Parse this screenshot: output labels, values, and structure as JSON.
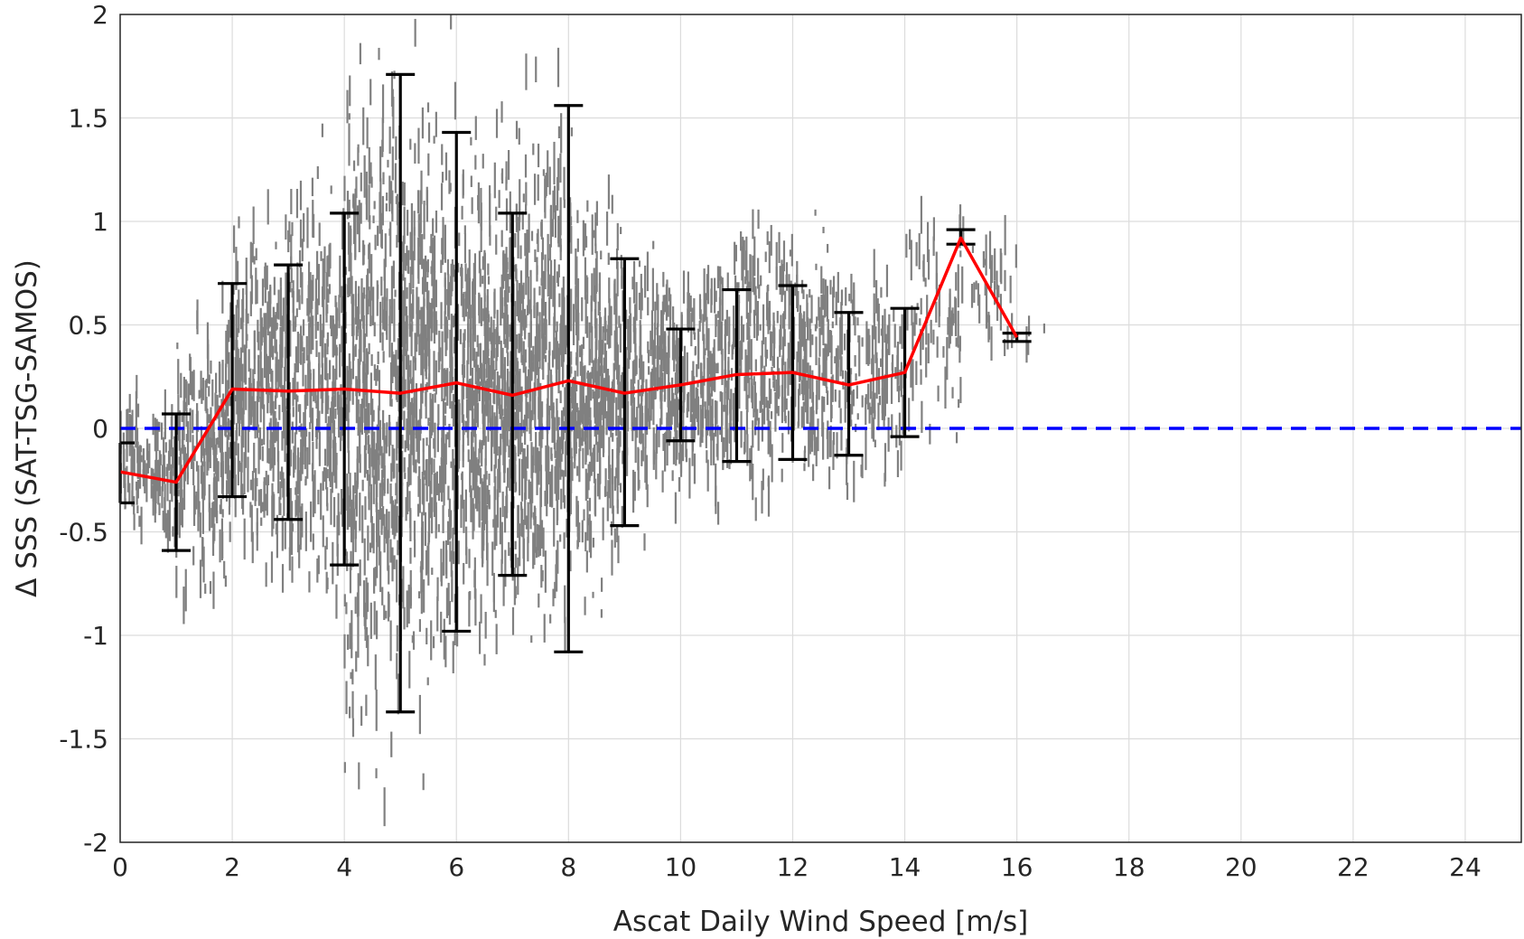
{
  "chart_data": {
    "type": "scatter",
    "title": "",
    "xlabel": "Ascat Daily Wind Speed [m/s]",
    "ylabel": "Δ SSS (SAT-TSG-SAMOS)",
    "xlim": [
      0,
      25
    ],
    "ylim": [
      -2,
      2
    ],
    "xticks": [
      0,
      2,
      4,
      6,
      8,
      10,
      12,
      14,
      16,
      18,
      20,
      22,
      24
    ],
    "xtick_labels": [
      "0",
      "2",
      "4",
      "6",
      "8",
      "10",
      "12",
      "14",
      "16",
      "18",
      "20",
      "22",
      "24"
    ],
    "yticks": [
      -2,
      -1.5,
      -1,
      -0.5,
      0,
      0.5,
      1,
      1.5,
      2
    ],
    "ytick_labels": [
      "-2",
      "-1.5",
      "-1",
      "-0.5",
      "0",
      "0.5",
      "1",
      "1.5",
      "2"
    ],
    "grid": true,
    "colors": {
      "scatter": "#808080",
      "mean_line": "#ff0000",
      "error_bars": "#000000",
      "zero_line": "#0000ff"
    },
    "mean_line": {
      "x": [
        0,
        1,
        2,
        3,
        4,
        5,
        6,
        7,
        8,
        9,
        10,
        11,
        12,
        13,
        14,
        15,
        16
      ],
      "y": [
        -0.21,
        -0.26,
        0.19,
        0.18,
        0.19,
        0.17,
        0.22,
        0.16,
        0.23,
        0.17,
        0.21,
        0.26,
        0.27,
        0.21,
        0.27,
        0.92,
        0.44
      ]
    },
    "error_bars": {
      "x": [
        0,
        1,
        2,
        3,
        4,
        5,
        6,
        7,
        8,
        9,
        10,
        11,
        12,
        13,
        14,
        15,
        16
      ],
      "lower": [
        -0.36,
        -0.59,
        -0.33,
        -0.44,
        -0.66,
        -1.37,
        -0.98,
        -0.71,
        -1.08,
        -0.47,
        -0.06,
        -0.16,
        -0.15,
        -0.13,
        -0.04,
        0.89,
        0.42
      ],
      "upper": [
        -0.07,
        0.07,
        0.7,
        0.79,
        1.04,
        1.71,
        1.43,
        1.04,
        1.56,
        0.82,
        0.48,
        0.67,
        0.69,
        0.56,
        0.58,
        0.96,
        0.46
      ]
    },
    "reference_line": {
      "y": 0,
      "style": "dashed"
    },
    "scatter_density": [
      {
        "x": 0.5,
        "center": -0.2,
        "spread": 0.16,
        "count": 110
      },
      {
        "x": 1.5,
        "center": -0.1,
        "spread": 0.3,
        "count": 200
      },
      {
        "x": 2.5,
        "center": 0.15,
        "spread": 0.38,
        "count": 260
      },
      {
        "x": 3.5,
        "center": 0.2,
        "spread": 0.42,
        "count": 300
      },
      {
        "x": 4.5,
        "center": 0.15,
        "spread": 0.75,
        "count": 420
      },
      {
        "x": 5.5,
        "center": 0.2,
        "spread": 0.6,
        "count": 420
      },
      {
        "x": 6.5,
        "center": 0.2,
        "spread": 0.5,
        "count": 420
      },
      {
        "x": 7.5,
        "center": 0.25,
        "spread": 0.55,
        "count": 420
      },
      {
        "x": 8.5,
        "center": 0.2,
        "spread": 0.42,
        "count": 340
      },
      {
        "x": 9.5,
        "center": 0.2,
        "spread": 0.26,
        "count": 220
      },
      {
        "x": 10.5,
        "center": 0.25,
        "spread": 0.26,
        "count": 200
      },
      {
        "x": 11.5,
        "center": 0.35,
        "spread": 0.3,
        "count": 200
      },
      {
        "x": 12.5,
        "center": 0.3,
        "spread": 0.26,
        "count": 160
      },
      {
        "x": 13.5,
        "center": 0.25,
        "spread": 0.22,
        "count": 110
      },
      {
        "x": 14.5,
        "center": 0.5,
        "spread": 0.25,
        "count": 70
      },
      {
        "x": 15.5,
        "center": 0.7,
        "spread": 0.15,
        "count": 30
      },
      {
        "x": 16.0,
        "center": 0.45,
        "spread": 0.03,
        "count": 10
      }
    ]
  }
}
